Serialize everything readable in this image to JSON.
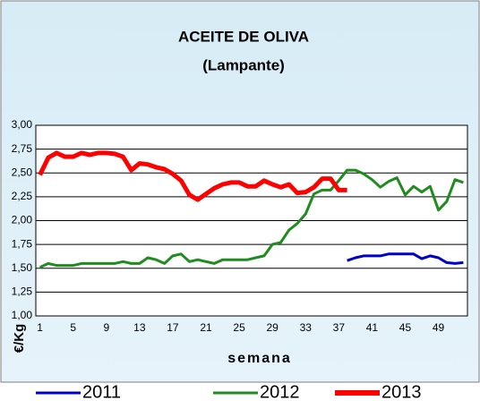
{
  "chart_data": {
    "type": "line",
    "title": "ACEITE DE OLIVA",
    "subtitle": "(Lampante)",
    "y_label": "€/Kg",
    "x_label": "semana",
    "categories": [
      "1",
      null,
      null,
      null,
      "5",
      null,
      null,
      null,
      "9",
      null,
      null,
      null,
      "13",
      null,
      null,
      null,
      "17",
      null,
      null,
      null,
      "21",
      null,
      null,
      null,
      "25",
      null,
      null,
      null,
      "29",
      null,
      null,
      null,
      "33",
      null,
      null,
      null,
      "37",
      null,
      null,
      null,
      "41",
      null,
      null,
      null,
      "45",
      null,
      null,
      null,
      "49",
      null,
      null,
      null
    ],
    "series": [
      {
        "name": "2011",
        "color": "#0000cc",
        "values": [
          null,
          null,
          null,
          null,
          null,
          null,
          null,
          null,
          null,
          null,
          null,
          null,
          null,
          null,
          null,
          null,
          null,
          null,
          null,
          null,
          null,
          null,
          null,
          null,
          null,
          null,
          null,
          null,
          null,
          null,
          null,
          null,
          null,
          null,
          null,
          null,
          null,
          1.58,
          1.61,
          1.63,
          1.63,
          1.63,
          1.65,
          1.65,
          1.65,
          1.65,
          1.6,
          1.63,
          1.61,
          1.56,
          1.55,
          1.56
        ]
      },
      {
        "name": "2012",
        "color": "#1e8c1e",
        "values": [
          1.51,
          1.55,
          1.53,
          1.53,
          1.53,
          1.55,
          1.55,
          1.55,
          1.55,
          1.55,
          1.57,
          1.55,
          1.55,
          1.61,
          1.59,
          1.55,
          1.63,
          1.65,
          1.57,
          1.59,
          1.57,
          1.55,
          1.59,
          1.59,
          1.59,
          1.59,
          1.61,
          1.63,
          1.75,
          1.77,
          1.9,
          1.97,
          2.07,
          2.28,
          2.32,
          2.32,
          2.42,
          2.53,
          2.53,
          2.49,
          2.43,
          2.35,
          2.41,
          2.45,
          2.27,
          2.36,
          2.3,
          2.36,
          2.11,
          2.2,
          2.43,
          2.4
        ]
      },
      {
        "name": "2013",
        "color": "#ff0000",
        "values": [
          2.48,
          2.66,
          2.71,
          2.67,
          2.67,
          2.71,
          2.69,
          2.71,
          2.71,
          2.7,
          2.67,
          2.53,
          2.6,
          2.59,
          2.56,
          2.54,
          2.49,
          2.42,
          2.27,
          2.22,
          2.28,
          2.34,
          2.38,
          2.4,
          2.4,
          2.36,
          2.36,
          2.42,
          2.38,
          2.35,
          2.38,
          2.29,
          2.3,
          2.35,
          2.44,
          2.44,
          2.32,
          2.32,
          null,
          null,
          null,
          null,
          null,
          null,
          null,
          null,
          null,
          null,
          null,
          null,
          null,
          null
        ]
      }
    ],
    "ylim": [
      1,
      3
    ],
    "yticks": [
      {
        "value": 1,
        "label": "1,00"
      },
      {
        "value": 1.25,
        "label": "1,25"
      },
      {
        "value": 1.5,
        "label": "1,50"
      },
      {
        "value": 1.75,
        "label": "1,75"
      },
      {
        "value": 2,
        "label": "2,00"
      },
      {
        "value": 2.25,
        "label": "2,25"
      },
      {
        "value": 2.5,
        "label": "2,50"
      },
      {
        "value": 2.75,
        "label": "2,75"
      },
      {
        "value": 3,
        "label": "3,00"
      }
    ],
    "grid": true,
    "legend": "bottom"
  }
}
